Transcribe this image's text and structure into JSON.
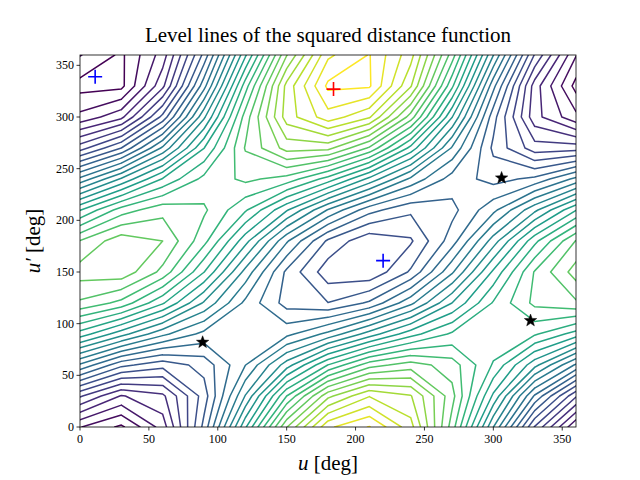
{
  "chart_data": {
    "type": "contour",
    "title": "Level lines of the squared distance function",
    "x_label": "u [deg]",
    "y_label": "u′ [deg]",
    "xlim": [
      0,
      360
    ],
    "ylim": [
      0,
      360
    ],
    "xticks": [
      0,
      50,
      100,
      150,
      200,
      250,
      300,
      350
    ],
    "yticks": [
      0,
      50,
      100,
      150,
      200,
      250,
      300,
      350
    ],
    "grid": false,
    "color": "viridis",
    "x_grid": [
      0,
      30,
      60,
      90,
      120,
      150,
      180,
      210,
      240,
      270,
      300,
      330,
      360
    ],
    "y_grid": [
      0,
      30,
      60,
      90,
      120,
      150,
      180,
      210,
      240,
      270,
      300,
      330,
      360
    ],
    "z": [
      [
        1.32,
        0.88,
        1.81,
        3.86,
        6.49,
        8.98,
        10.68,
        11.12,
        10.19,
        8.14,
        5.51,
        3.02,
        1.32
      ],
      [
        2.75,
        1.97,
        2.27,
        3.57,
        5.52,
        7.6,
        9.25,
        10.03,
        9.73,
        8.43,
        6.48,
        4.4,
        2.75
      ],
      [
        4.74,
        3.85,
        3.53,
        3.88,
        4.79,
        6.03,
        7.26,
        8.15,
        8.47,
        8.13,
        7.21,
        5.97,
        4.74
      ],
      [
        6.75,
        5.99,
        5.24,
        4.69,
        4.49,
        4.7,
        5.25,
        6.01,
        6.76,
        7.31,
        7.51,
        7.3,
        6.75
      ],
      [
        8.24,
        7.84,
        6.95,
        5.8,
        4.71,
        3.96,
        3.76,
        4.16,
        5.05,
        6.2,
        7.29,
        8.04,
        8.24
      ],
      [
        8.81,
        8.89,
        8.2,
        6.91,
        5.38,
        4.02,
        3.19,
        3.11,
        3.8,
        5.09,
        6.62,
        7.98,
        8.81
      ],
      [
        8.32,
        8.87,
        8.65,
        7.72,
        6.33,
        4.85,
        3.68,
        3.13,
        3.35,
        4.28,
        5.67,
        7.15,
        8.32
      ],
      [
        6.88,
        7.77,
        8.18,
        8.01,
        7.3,
        6.24,
        5.12,
        4.23,
        3.82,
        3.99,
        4.7,
        5.76,
        6.88
      ],
      [
        4.9,
        5.9,
        6.93,
        7.71,
        8.03,
        7.81,
        7.1,
        6.1,
        5.07,
        4.29,
        3.97,
        4.19,
        4.9
      ],
      [
        2.89,
        3.75,
        5.22,
        6.89,
        8.33,
        9.14,
        9.11,
        8.25,
        6.79,
        5.11,
        3.67,
        2.86,
        2.89
      ],
      [
        1.4,
        1.9,
        3.51,
        5.78,
        8.11,
        9.87,
        10.6,
        10.1,
        8.49,
        6.22,
        3.89,
        2.13,
        1.4
      ],
      [
        0.82,
        0.85,
        2.26,
        4.67,
        7.44,
        9.82,
        11.18,
        11.15,
        9.74,
        7.33,
        4.56,
        2.18,
        0.82
      ],
      [
        1.32,
        0.88,
        1.81,
        3.86,
        6.49,
        8.98,
        10.68,
        11.12,
        10.19,
        8.14,
        5.51,
        3.02,
        1.32
      ]
    ],
    "levels": [
      0.95,
      1.3,
      1.65,
      2.0,
      2.35,
      2.7,
      3.05,
      3.4,
      3.75,
      4.1,
      4.45,
      4.8,
      5.15,
      5.5,
      5.85,
      6.2,
      6.55,
      6.9,
      7.25,
      7.6,
      7.95,
      8.3,
      8.65,
      9.0,
      9.35,
      9.7,
      10.05,
      10.4,
      10.75,
      11.1
    ],
    "series": [
      {
        "color": "#ff0000",
        "marker": "plus",
        "x": [
          184
        ],
        "y": [
          327
        ]
      },
      {
        "color": "#0000ff",
        "marker": "plus",
        "x": [
          11,
          220
        ],
        "y": [
          339,
          161
        ]
      },
      {
        "color": "#000000",
        "marker": "star",
        "x": [
          89,
          306,
          327
        ],
        "y": [
          82,
          241,
          103
        ]
      }
    ]
  }
}
